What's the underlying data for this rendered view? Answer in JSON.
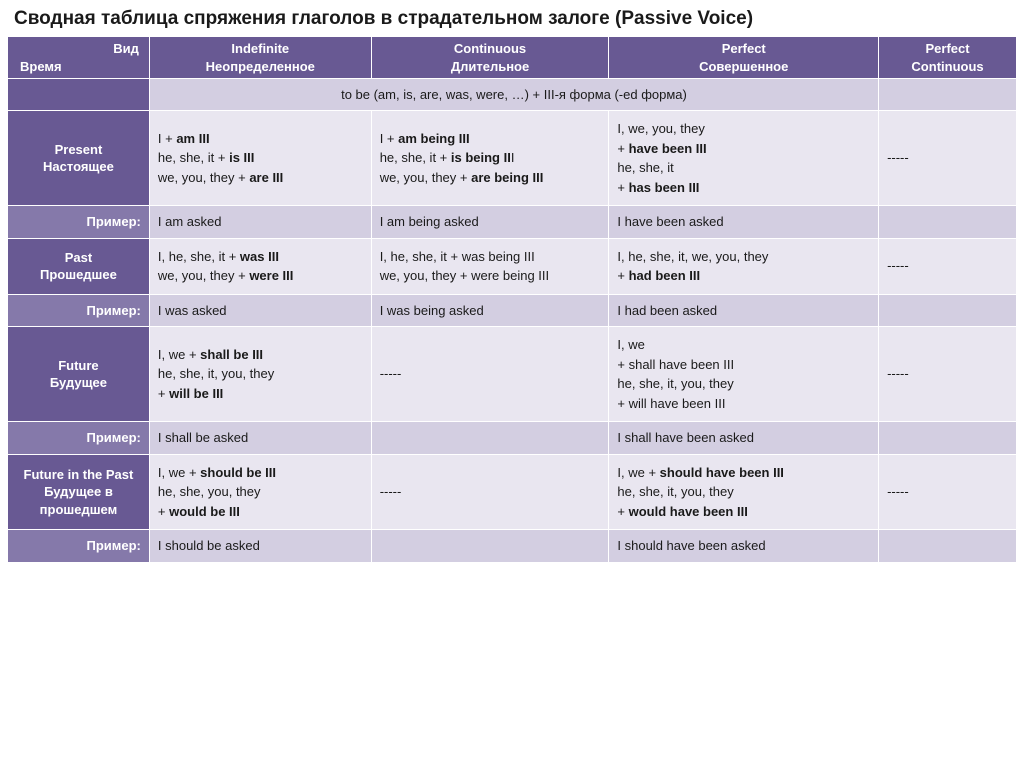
{
  "title": "Сводная таблица спряжения глаголов в страдательном залоге (Passive Voice)",
  "header": {
    "axis_top": "Вид",
    "axis_left": "Время",
    "cols": {
      "indef": {
        "en": "Indefinite",
        "ru": "Неопределенное"
      },
      "cont": {
        "en": "Continuous",
        "ru": "Длительное"
      },
      "perf": {
        "en": "Perfect",
        "ru": "Совершенное"
      },
      "pc": {
        "en": "Perfect",
        "ru": "Continuous"
      }
    }
  },
  "formula": "to be (am, is, are, was, were, …)  +  III-я форма (-ed форма)",
  "row_example_label": "Пример:",
  "dash": "-----",
  "rows": {
    "present": {
      "label_en": "Present",
      "label_ru": "Настоящее",
      "indef_html": "I  + <b>am III</b><br>he, she, it +  <b>is III</b><br>we, you, they      + <b>are III</b>",
      "cont_html": " I  + <b>am being III</b><br>he, she, it +  <b>is being II</b>I<br>we, you, they   + <b>are being III</b>",
      "perf_html": "I, we, you, they<br>+ <b>have been III</b><br>he, she, it<br>+ <b>has been III</b>",
      "pc_html": "-----",
      "ex_indef": "I am asked",
      "ex_cont": "I am being asked",
      "ex_perf": "I have been asked",
      "ex_pc": ""
    },
    "past": {
      "label_en": "Past",
      "label_ru": "Прошедшее",
      "indef_html": "I, he, she, it + <b>was III</b><br>we, you, they + <b>were III</b>",
      "cont_html": "I, he, she, it + was being III<br>we, you, they + were being III",
      "perf_html": "I, he, she, it, we, you, they<br>  + <b>had been III</b>",
      "pc_html": "-----",
      "ex_indef": "I was asked",
      "ex_cont": "I was being asked",
      "ex_perf": "I had been asked",
      "ex_pc": ""
    },
    "future": {
      "label_en": "Future",
      "label_ru": "Будущее",
      "indef_html": "I, we  + <b>shall be III</b><br>he, she, it, you, they<br>  + <b>will be III</b>",
      "cont_html": "-----",
      "perf_html": "I, we<br>+ shall have been III<br> he, she, it, you, they<br> + will have been III",
      "pc_html": "-----",
      "ex_indef": "I shall be asked",
      "ex_cont": "",
      "ex_perf": "I shall have been asked",
      "ex_pc": ""
    },
    "future_past": {
      "label_en": "Future in the Past",
      "label_ru": "Будущее в прошедшем",
      "indef_html": "I, we  + <b>should be III</b><br>he, she, you, they<br> + <b>would be III</b>",
      "cont_html": "-----",
      "perf_html": "I, we + <b>should have been III</b><br> he, she, it, you, they<br> + <b>would have been III</b>",
      "pc_html": "-----",
      "ex_indef": "I should be asked",
      "ex_cont": "",
      "ex_perf": "I should have been asked",
      "ex_pc": ""
    }
  },
  "colors": {
    "header_bg": "#685993",
    "rowhead_example_bg": "#8579aa",
    "cell_bg": "#e9e6f0",
    "cell_alt_bg": "#d3cee1",
    "text": "#1a1a1a",
    "header_text": "#ffffff"
  }
}
